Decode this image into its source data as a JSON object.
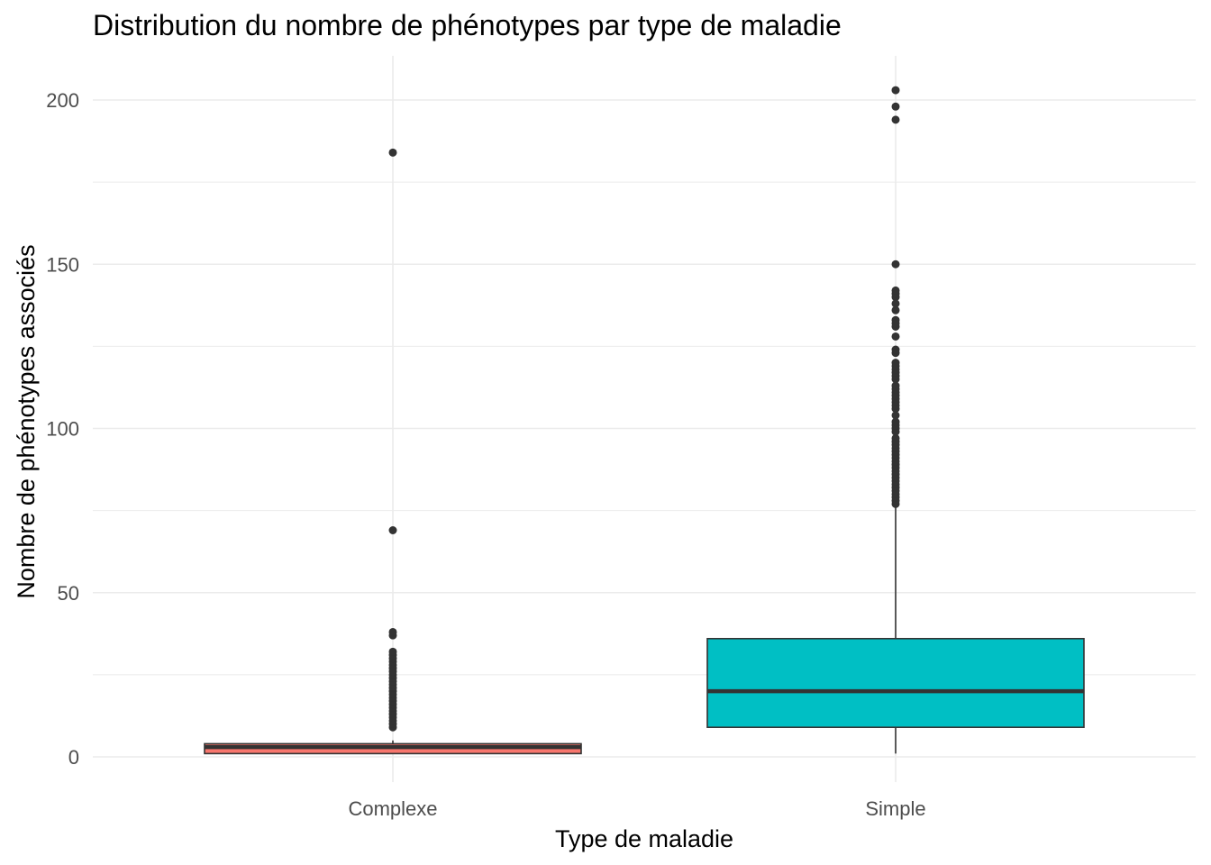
{
  "chart_data": {
    "type": "box",
    "title": "Distribution du nombre de phénotypes par type de maladie",
    "xlabel": "Type de maladie",
    "ylabel": "Nombre de phénotypes associés",
    "ylim": [
      -8,
      213
    ],
    "yticks": [
      0,
      50,
      100,
      150,
      200
    ],
    "grid": true,
    "legend": "none",
    "categories": [
      "Complexe",
      "Simple"
    ],
    "boxes": [
      {
        "category": "Complexe",
        "color": "#F8766D",
        "min": 1,
        "q1": 1,
        "median": 3,
        "q3": 4,
        "max": 5,
        "outliers": [
          9,
          10,
          11,
          12,
          13,
          14,
          15,
          16,
          17,
          18,
          19,
          20,
          21,
          22,
          23,
          24,
          25,
          26,
          27,
          28,
          29,
          30,
          31,
          32,
          37,
          38,
          69,
          184
        ]
      },
      {
        "category": "Simple",
        "color": "#00BFC4",
        "min": 1,
        "q1": 9,
        "median": 20,
        "q3": 36,
        "max": 76,
        "outliers": [
          77,
          78,
          79,
          80,
          81,
          82,
          83,
          84,
          85,
          86,
          87,
          88,
          89,
          90,
          91,
          92,
          93,
          94,
          95,
          96,
          97,
          99,
          100,
          101,
          102,
          104,
          106,
          107,
          108,
          109,
          110,
          111,
          112,
          113,
          115,
          116,
          117,
          118,
          119,
          120,
          123,
          124,
          128,
          131,
          132,
          133,
          136,
          138,
          140,
          141,
          142,
          150,
          194,
          198,
          203
        ]
      }
    ]
  }
}
